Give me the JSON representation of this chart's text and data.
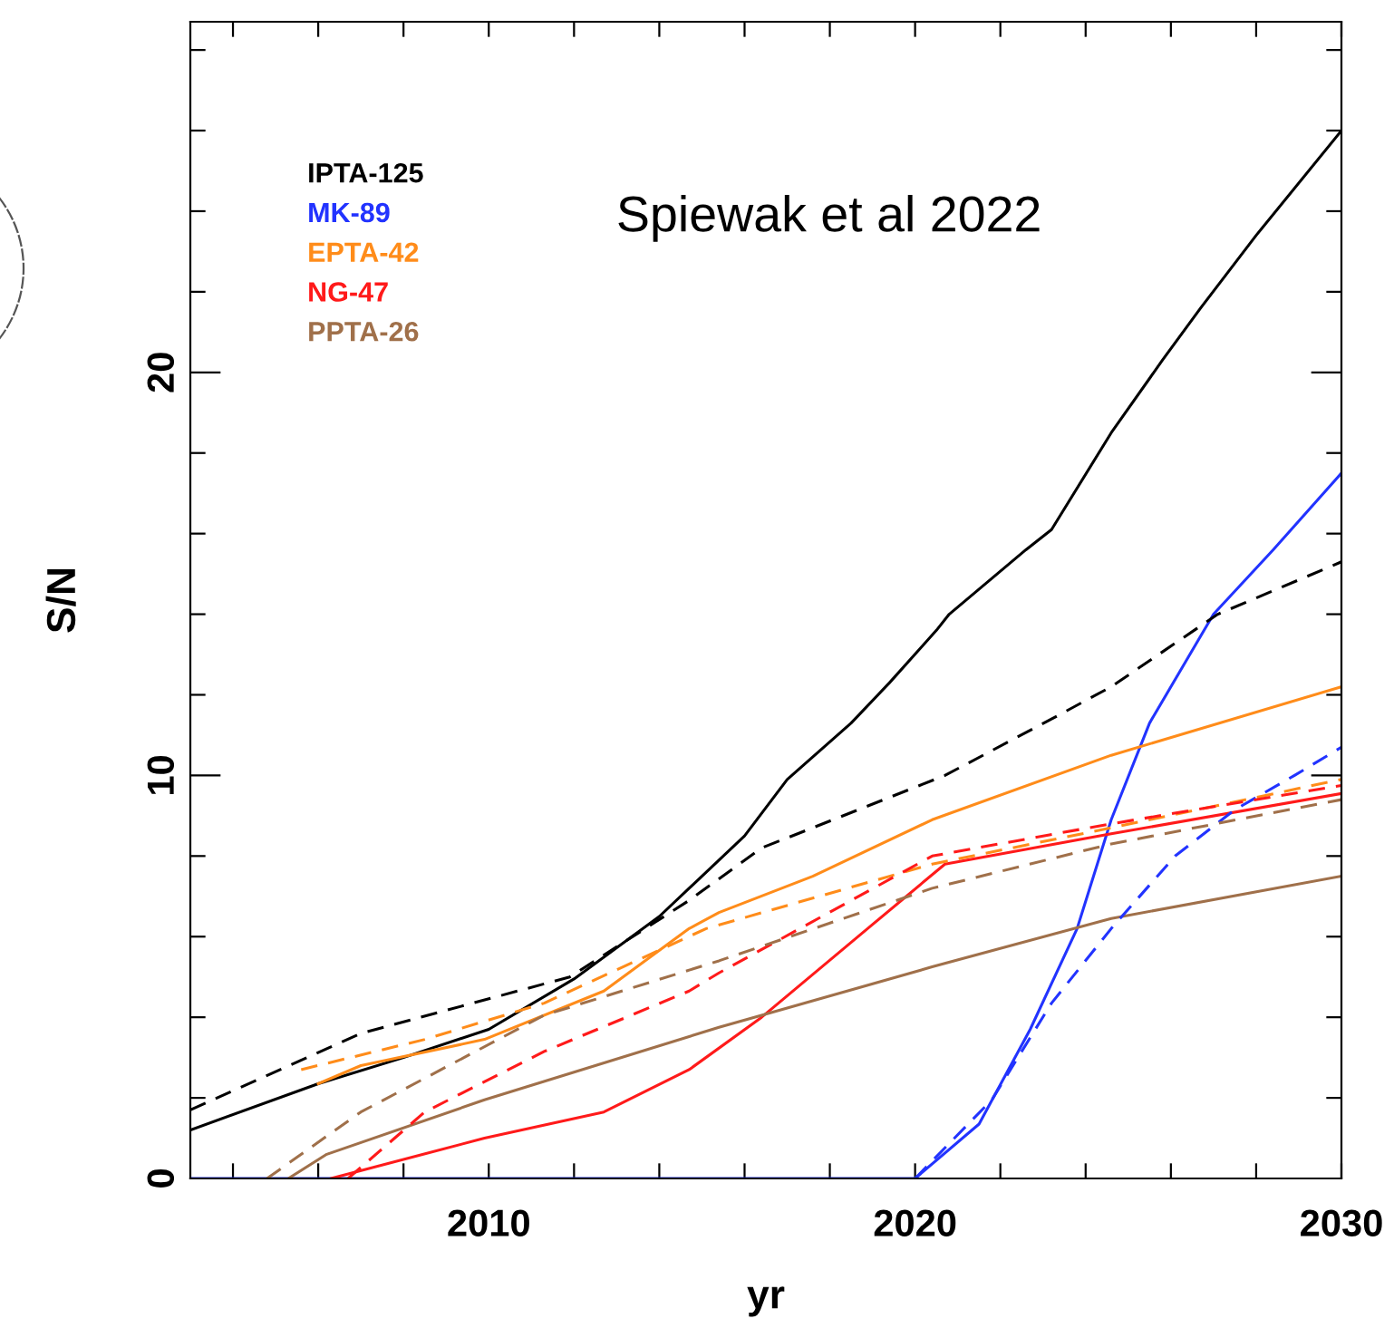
{
  "chart_data": {
    "type": "line",
    "xlabel": "yr",
    "ylabel": "S/N",
    "annotations": [
      "Spiewak et al 2022"
    ],
    "xlim": [
      2003,
      2030
    ],
    "ylim": [
      0,
      28.7
    ],
    "xticks": [
      {
        "value": 2004,
        "label": null
      },
      {
        "value": 2006,
        "label": null
      },
      {
        "value": 2008,
        "label": null
      },
      2010,
      {
        "value": 2012,
        "label": null
      },
      {
        "value": 2014,
        "label": null
      },
      {
        "value": 2016,
        "label": null
      },
      {
        "value": 2018,
        "label": null
      },
      2020,
      {
        "value": 2022,
        "label": null
      },
      {
        "value": 2024,
        "label": null
      },
      {
        "value": 2026,
        "label": null
      },
      {
        "value": 2028,
        "label": null
      },
      2030
    ],
    "yticks": [
      0,
      {
        "value": 2,
        "label": null
      },
      {
        "value": 4,
        "label": null
      },
      {
        "value": 6,
        "label": null
      },
      {
        "value": 8,
        "label": null
      },
      10,
      {
        "value": 12,
        "label": null
      },
      {
        "value": 14,
        "label": null
      },
      {
        "value": 16,
        "label": null
      },
      {
        "value": 18,
        "label": null
      },
      20,
      {
        "value": 22,
        "label": null
      },
      {
        "value": 24,
        "label": null
      },
      {
        "value": 26,
        "label": null
      },
      {
        "value": 28,
        "label": null
      }
    ],
    "legend": "top left",
    "grid": false,
    "marker": "none",
    "series": [
      {
        "name": "IPTA-125",
        "color": "#000000",
        "line_style": "solid",
        "x": [
          2003,
          2006,
          2008,
          2010,
          2012,
          2014,
          2016,
          2017,
          2018.5,
          2019.4,
          2020.5,
          2020.8,
          2022.6,
          2023.2,
          2024.6,
          2025.8,
          2026.7,
          2028,
          2030
        ],
        "values": [
          1.2,
          2.35,
          3.0,
          3.7,
          4.95,
          6.5,
          8.5,
          9.9,
          11.3,
          12.3,
          13.6,
          14.0,
          15.6,
          16.1,
          18.5,
          20.3,
          21.6,
          23.4,
          26.0
        ]
      },
      {
        "name": "MK-89",
        "color": "#2233ff",
        "line_style": "solid",
        "x": [
          2003,
          2020,
          2021.5,
          2022.7,
          2023.8,
          2024.6,
          2025.5,
          2027,
          2028.4,
          2030
        ],
        "values": [
          0,
          0,
          1.35,
          3.7,
          6.2,
          8.9,
          11.3,
          14.0,
          15.6,
          17.5
        ]
      },
      {
        "name": "EPTA-42",
        "color": "#ff8c1a",
        "line_style": "solid",
        "x": [
          2006,
          2007,
          2009.9,
          2012.7,
          2014.7,
          2015.4,
          2017.6,
          2020.4,
          2024.6,
          2030
        ],
        "values": [
          2.35,
          2.8,
          3.45,
          4.65,
          6.2,
          6.6,
          7.5,
          8.9,
          10.5,
          12.2
        ]
      },
      {
        "name": "NG-47",
        "color": "#ff1a1a",
        "line_style": "solid",
        "x": [
          2006.3,
          2009.9,
          2012.7,
          2014.7,
          2016.4,
          2019,
          2020.7,
          2024.6,
          2030
        ],
        "values": [
          0,
          1.0,
          1.65,
          2.7,
          4.0,
          6.3,
          7.8,
          8.55,
          9.55
        ]
      },
      {
        "name": "PPTA-26",
        "color": "#a0704a",
        "line_style": "solid",
        "x": [
          2005.3,
          2006.2,
          2009.9,
          2015.4,
          2016.4,
          2020.4,
          2024.6,
          2030
        ],
        "values": [
          0,
          0.6,
          1.95,
          3.75,
          4.05,
          5.25,
          6.45,
          7.5
        ]
      },
      {
        "color": "#000000",
        "line_style": "dashed",
        "x": [
          2003,
          2007,
          2011.9,
          2014.7,
          2016.4,
          2020.7,
          2023.2,
          2024.6,
          2027.1,
          2030
        ],
        "values": [
          1.7,
          3.6,
          5.0,
          6.9,
          8.2,
          10.0,
          11.4,
          12.2,
          14.0,
          15.3
        ]
      },
      {
        "color": "#2233ff",
        "line_style": "dashed",
        "x": [
          2020,
          2021.8,
          2023.2,
          2024.6,
          2026.1,
          2027.5,
          2028.9,
          2030
        ],
        "values": [
          0,
          1.95,
          4.35,
          6.2,
          8.0,
          9.15,
          10.0,
          10.7
        ]
      },
      {
        "color": "#ff8c1a",
        "line_style": "dashed",
        "x": [
          2005.6,
          2008.5,
          2011.3,
          2015.1,
          2020.4,
          2024.6,
          2030
        ],
        "values": [
          2.7,
          3.45,
          4.35,
          6.2,
          7.8,
          8.7,
          9.9
        ]
      },
      {
        "color": "#ff1a1a",
        "line_style": "dashed",
        "x": [
          2006.7,
          2008.5,
          2011.3,
          2014.7,
          2015.4,
          2020.4,
          2024.6,
          2030
        ],
        "values": [
          0,
          1.65,
          3.15,
          4.65,
          5.1,
          8.0,
          8.8,
          9.75
        ]
      },
      {
        "color": "#a0704a",
        "line_style": "dashed",
        "x": [
          2004.8,
          2007,
          2011.3,
          2015.4,
          2020.4,
          2024.6,
          2030
        ],
        "values": [
          0,
          1.65,
          4.05,
          5.4,
          7.2,
          8.3,
          9.4
        ]
      }
    ]
  }
}
